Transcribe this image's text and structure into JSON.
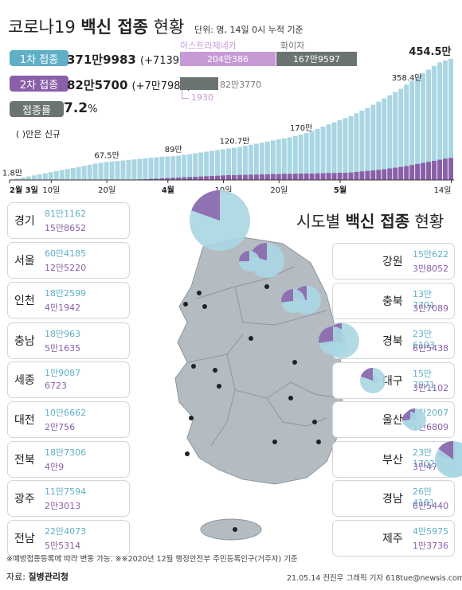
{
  "title": {
    "prefix": "코로나19",
    "bold": "백신 접종",
    "suffix": "현황",
    "unit_note": "단위: 명, 14일 0시 누적 기준"
  },
  "stats": {
    "dose1": {
      "label": "1차 접종",
      "value": "371만9983",
      "new": "(+7139)"
    },
    "dose2": {
      "label": "2차 접종",
      "value": "82만5700",
      "new": "(+7만7987)"
    },
    "rate": {
      "label": "접종률",
      "value": "7.2",
      "unit": "%"
    }
  },
  "vaccine_bars": {
    "astrazeneca_label": "아스트라제네카",
    "pfizer_label": "화이자",
    "dose1_az": "204만386",
    "dose1_pf": "167만9597",
    "dose2_pf": "82만3770",
    "dose2_az": "1930"
  },
  "new_note": "( )안은 신규",
  "colors": {
    "dose1": "#5fb0c6",
    "dose2": "#8a5fa9",
    "gray": "#6b7373",
    "map": "#b4bcc2",
    "pie_light": "#a9d6e2"
  },
  "chart_data": {
    "type": "bar",
    "series": [
      {
        "name": "1차 접종",
        "color": "#a9d6e2"
      },
      {
        "name": "2차 접종",
        "color": "#8a5fa9"
      }
    ],
    "annotations": [
      {
        "label": "1.8만",
        "value": 1.8
      },
      {
        "label": "67.5만",
        "value": 67.5
      },
      {
        "label": "89만",
        "value": 89
      },
      {
        "label": "120.7만",
        "value": 120.7
      },
      {
        "label": "170만",
        "value": 170
      },
      {
        "label": "358.4만",
        "value": 358.4
      },
      {
        "label": "454.5만",
        "value": 454.5
      }
    ],
    "x_ticks": [
      "2월 3일",
      "10일",
      "20일",
      "4월",
      "10일",
      "20일",
      "5월",
      "14일"
    ],
    "dose1_values": [
      1.8,
      5,
      9,
      13,
      17,
      21,
      25,
      29,
      33,
      37,
      41,
      45,
      49,
      53,
      57,
      61,
      64,
      67.5,
      69,
      71,
      73,
      75,
      77,
      79,
      81,
      83,
      85,
      87,
      88,
      89,
      91,
      94,
      97,
      100,
      103,
      106,
      109,
      112,
      115,
      118,
      120.7,
      124,
      128,
      132,
      136,
      140,
      144,
      148,
      152,
      156,
      160,
      165,
      170,
      176,
      184,
      192,
      200,
      208,
      216,
      224,
      232,
      240,
      250,
      260,
      270,
      282,
      294,
      306,
      318,
      330,
      342,
      358.4,
      372,
      386,
      400,
      414,
      428,
      441,
      448,
      454.5
    ],
    "dose2_values": [
      0,
      0,
      0,
      0,
      0,
      0,
      0,
      0,
      0,
      0,
      0,
      0,
      0,
      0,
      0,
      0,
      0,
      0,
      0,
      0,
      0,
      1,
      1,
      2,
      3,
      4,
      5,
      6,
      7,
      8,
      9,
      10,
      11,
      12,
      13,
      14,
      15,
      16,
      17,
      18,
      18,
      19,
      19,
      20,
      20,
      21,
      21,
      22,
      22,
      23,
      23,
      23,
      24,
      24,
      24,
      25,
      25,
      26,
      26,
      27,
      27,
      28,
      30,
      32,
      34,
      36,
      38,
      40,
      43,
      46,
      49,
      52,
      56,
      60,
      64,
      68,
      72,
      76,
      80,
      82.5
    ]
  },
  "map_title": {
    "prefix": "시도별",
    "bold": "백신 접종",
    "suffix": "현황"
  },
  "regions": [
    {
      "name": "경기",
      "d1": "81만1162",
      "d2": "15만8652",
      "d1n": 811162,
      "d2n": 158652
    },
    {
      "name": "서울",
      "d1": "60만4185",
      "d2": "12만5220",
      "d1n": 604185,
      "d2n": 125220
    },
    {
      "name": "인천",
      "d1": "18만2599",
      "d2": "4만1942",
      "d1n": 182599,
      "d2n": 41942
    },
    {
      "name": "충남",
      "d1": "18만963",
      "d2": "5만1635",
      "d1n": 180963,
      "d2n": 51635
    },
    {
      "name": "세종",
      "d1": "1만9087",
      "d2": "6723",
      "d1n": 19087,
      "d2n": 6723
    },
    {
      "name": "대전",
      "d1": "10만6662",
      "d2": "2만756",
      "d1n": 106662,
      "d2n": 20756
    },
    {
      "name": "전북",
      "d1": "18만7306",
      "d2": "4만9",
      "d1n": 187306,
      "d2n": 40009
    },
    {
      "name": "광주",
      "d1": "11만7594",
      "d2": "2만3013",
      "d1n": 117594,
      "d2n": 23013
    },
    {
      "name": "전남",
      "d1": "22만4073",
      "d2": "5만5314",
      "d1n": 224073,
      "d2n": 55314
    },
    {
      "name": "강원",
      "d1": "15만622",
      "d2": "3만8052",
      "d1n": 150622,
      "d2n": 38052
    },
    {
      "name": "충북",
      "d1": "13만7701",
      "d2": "3만7089",
      "d1n": 137701,
      "d2n": 37089
    },
    {
      "name": "경북",
      "d1": "23만6193",
      "d2": "6만5438",
      "d1n": 236193,
      "d2n": 65438
    },
    {
      "name": "대구",
      "d1": "15만7971",
      "d2": "3만1102",
      "d1n": 157971,
      "d2n": 31102
    },
    {
      "name": "울산",
      "d1": "6만2007",
      "d2": "1만6809",
      "d1n": 62007,
      "d2n": 16809
    },
    {
      "name": "부산",
      "d1": "23만1702",
      "d2": "3만4770",
      "d1n": 231702,
      "d2n": 34770
    },
    {
      "name": "경남",
      "d1": "26만4181",
      "d2": "6만5440",
      "d1n": 264181,
      "d2n": 65440
    },
    {
      "name": "제주",
      "d1": "4만5975",
      "d2": "1만3736",
      "d1n": 45975,
      "d2n": 13736
    }
  ],
  "footer": {
    "note": "※예방접종등록에 따라 변동 가능. ※※2020년 12월 행정안전부 주민등록인구(거주자) 기준",
    "source_label": "자료:",
    "source": "질병관리청",
    "credit": "21.05.14 전진우 그래픽 기자 618tue@newsis.com"
  }
}
